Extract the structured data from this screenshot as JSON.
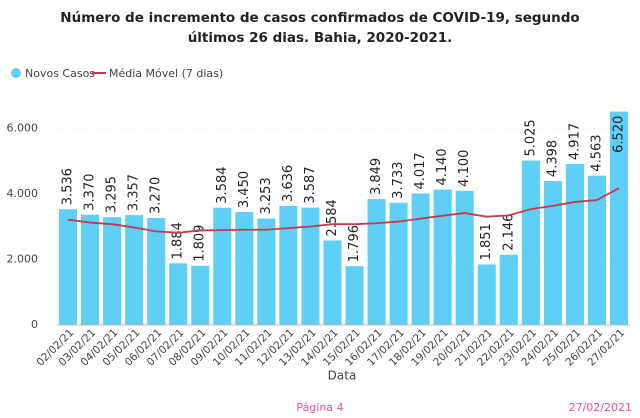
{
  "chart_data": {
    "type": "bar",
    "title": "Número de incremento de casos confirmados de COVID-19, segundo últimos 26 dias.  Bahia, 2020-2021.",
    "x_label": "Data",
    "categories": [
      "02/02/21",
      "03/02/21",
      "04/02/21",
      "05/02/21",
      "06/02/21",
      "07/02/21",
      "08/02/21",
      "09/02/21",
      "10/02/21",
      "11/02/21",
      "12/02/21",
      "13/02/21",
      "14/02/21",
      "15/02/21",
      "16/02/21",
      "17/02/21",
      "18/02/21",
      "19/02/21",
      "20/02/21",
      "21/02/21",
      "22/02/21",
      "23/02/21",
      "24/02/21",
      "25/02/21",
      "26/02/21",
      "27/02/21"
    ],
    "series": [
      {
        "name": "Novos Casos",
        "color": "#5fcff6",
        "values": [
          3536,
          3370,
          3295,
          3357,
          3270,
          1884,
          1809,
          3584,
          3450,
          3253,
          3636,
          3587,
          2584,
          1796,
          3849,
          3733,
          4017,
          4140,
          4100,
          1851,
          2146,
          5025,
          4398,
          4917,
          4563,
          6520
        ],
        "value_labels": [
          "3.536",
          "3.370",
          "3.295",
          "3.357",
          "3.270",
          "1.884",
          "1.809",
          "3.584",
          "3.450",
          "3.253",
          "3.636",
          "3.587",
          "2.584",
          "1.796",
          "3.849",
          "3.733",
          "4.017",
          "4.140",
          "4.100",
          "1.851",
          "2.146",
          "5.025",
          "4.398",
          "4.917",
          "4.563",
          "6.520"
        ]
      },
      {
        "name": "Média Móvel (7 dias)",
        "color": "#c23a4e",
        "type": "line",
        "values": [
          3220,
          3130,
          3080,
          2980,
          2860,
          2820,
          2890,
          2900,
          2910,
          2910,
          2960,
          3010,
          3080,
          3080,
          3110,
          3160,
          3250,
          3340,
          3420,
          3310,
          3350,
          3540,
          3640,
          3760,
          3820,
          4180
        ]
      }
    ],
    "ylim": [
      0,
      6600
    ],
    "yticks": [
      0,
      {
        "value": 2000,
        "label": "2.000"
      },
      {
        "value": 4000,
        "label": "4.000"
      },
      {
        "value": 6000,
        "label": "6.000"
      }
    ],
    "grid": true
  },
  "footer": {
    "page": "Página 4",
    "date": "27/02/2021"
  }
}
